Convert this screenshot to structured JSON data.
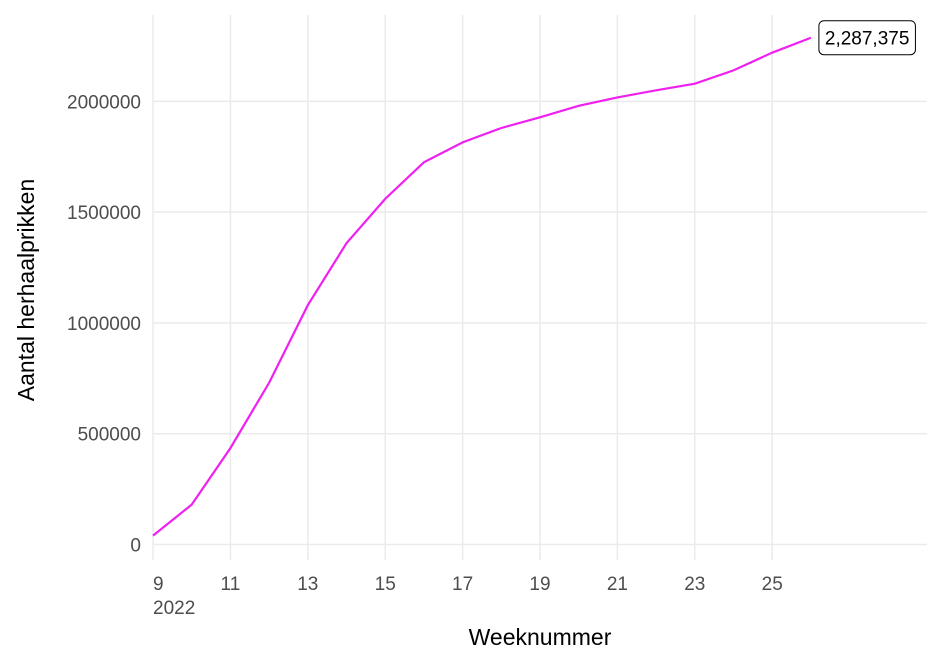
{
  "chart_data": {
    "type": "line",
    "x_label": "Weeknummer",
    "y_label": "Aantal herhaalprikken",
    "x": [
      9,
      10,
      11,
      12,
      13,
      14,
      15,
      16,
      17,
      18,
      19,
      20,
      21,
      22,
      23,
      24,
      25,
      26
    ],
    "series": [
      {
        "name": "Aantal herhaalprikken",
        "color": "#f020f0",
        "values": [
          40000,
          180000,
          435000,
          730000,
          1080000,
          1360000,
          1560000,
          1725000,
          1815000,
          1880000,
          1928000,
          1980000,
          2018000,
          2050000,
          2080000,
          2140000,
          2220000,
          2287375
        ],
        "value_labels": [
          null,
          null,
          null,
          null,
          null,
          null,
          null,
          null,
          null,
          null,
          null,
          null,
          null,
          null,
          null,
          null,
          null,
          "2,287,375"
        ]
      }
    ],
    "xlim": [
      9,
      29
    ],
    "xticks": [
      {
        "value": 9,
        "label": "9\n2022"
      },
      11,
      13,
      15,
      17,
      19,
      21,
      23,
      25
    ],
    "ylim": [
      -70000,
      2390000
    ],
    "yticks": [
      0,
      500000,
      1000000,
      1500000,
      2000000
    ],
    "grid": true
  }
}
